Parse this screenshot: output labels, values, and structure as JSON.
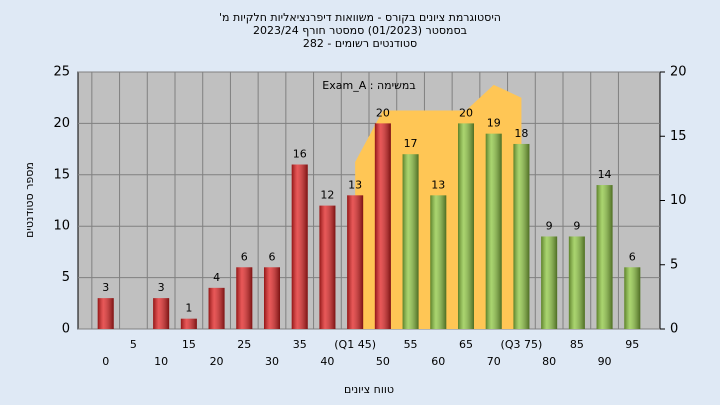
{
  "chart_data": {
    "type": "bar",
    "title": [
      "היסטוגרמת ציונים בקורס - משוואות דיפרנציאליות חלקיות מ'",
      "בסמסטר (01/2023) סמסטר חורף 2023/24",
      "סטודנטים רשומים - 282"
    ],
    "annotation": "במשימה : Exam_A",
    "x_label": "טווח ציונים",
    "y_label": "מספר סטודנטים",
    "categories": [
      "0",
      "5",
      "10",
      "15",
      "20",
      "25",
      "30",
      "35",
      "40",
      "(Q1 45)",
      "50",
      "55",
      "60",
      "65",
      "70",
      "(Q3 75)",
      "80",
      "85",
      "90",
      "95"
    ],
    "values": [
      3,
      null,
      3,
      1,
      4,
      6,
      6,
      16,
      12,
      13,
      20,
      17,
      13,
      20,
      19,
      18,
      9,
      9,
      14,
      6
    ],
    "colors": [
      "#e02020",
      "#e02020",
      "#e02020",
      "#e02020",
      "#e02020",
      "#e02020",
      "#e02020",
      "#e02020",
      "#e02020",
      "#e02020",
      "#e02020",
      "#8dc63f",
      "#8dc63f",
      "#8dc63f",
      "#8dc63f",
      "#8dc63f",
      "#8dc63f",
      "#8dc63f",
      "#8dc63f",
      "#8dc63f"
    ],
    "area": {
      "color": "#ffc655",
      "axis": "y2",
      "values": [
        null,
        null,
        null,
        null,
        null,
        null,
        null,
        null,
        null,
        13,
        17,
        17,
        17,
        17,
        19,
        18,
        null,
        null,
        null,
        null
      ]
    },
    "ylim": [
      0,
      25
    ],
    "yticks": [
      0,
      5,
      10,
      15,
      20,
      25
    ],
    "y2lim": [
      0,
      20
    ],
    "y2ticks": [
      0,
      5,
      10,
      15,
      20
    ],
    "grid": true
  }
}
